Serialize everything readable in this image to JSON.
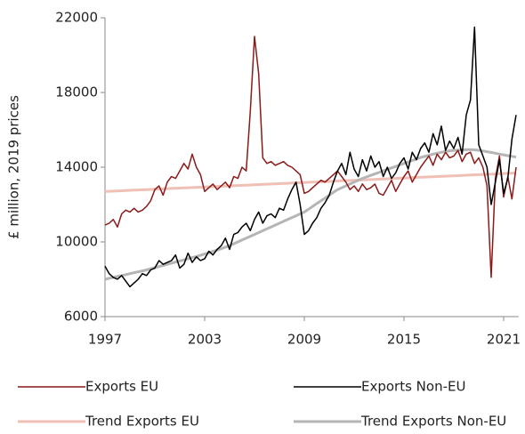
{
  "chart_data": {
    "type": "line",
    "ylabel": "£ million, 2019 prices",
    "xlim": [
      1997,
      2021.9
    ],
    "xticks": [
      1997,
      2003,
      2009,
      2015,
      2021
    ],
    "ylim": [
      6000,
      22000
    ],
    "yticks": [
      6000,
      10000,
      14000,
      18000,
      22000
    ],
    "grid": false,
    "legend": "bottom",
    "x": [
      1997,
      1997.25,
      1997.5,
      1997.75,
      1998,
      1998.25,
      1998.5,
      1998.75,
      1999,
      1999.25,
      1999.5,
      1999.75,
      2000,
      2000.25,
      2000.5,
      2000.75,
      2001,
      2001.25,
      2001.5,
      2001.75,
      2002,
      2002.25,
      2002.5,
      2002.75,
      2003,
      2003.25,
      2003.5,
      2003.75,
      2004,
      2004.25,
      2004.5,
      2004.75,
      2005,
      2005.25,
      2005.5,
      2005.75,
      2006,
      2006.25,
      2006.5,
      2006.75,
      2007,
      2007.25,
      2007.5,
      2007.75,
      2008,
      2008.25,
      2008.5,
      2008.75,
      2009,
      2009.25,
      2009.5,
      2009.75,
      2010,
      2010.25,
      2010.5,
      2010.75,
      2011,
      2011.25,
      2011.5,
      2011.75,
      2012,
      2012.25,
      2012.5,
      2012.75,
      2013,
      2013.25,
      2013.5,
      2013.75,
      2014,
      2014.25,
      2014.5,
      2014.75,
      2015,
      2015.25,
      2015.5,
      2015.75,
      2016,
      2016.25,
      2016.5,
      2016.75,
      2017,
      2017.25,
      2017.5,
      2017.75,
      2018,
      2018.25,
      2018.5,
      2018.75,
      2019,
      2019.25,
      2019.5,
      2019.75,
      2020,
      2020.25,
      2020.5,
      2020.75,
      2021,
      2021.25,
      2021.5,
      2021.75
    ],
    "series": [
      {
        "name": "Exports EU",
        "color": "#8b1a1a",
        "width": 1.5,
        "values": [
          10900,
          11000,
          11200,
          10800,
          11500,
          11700,
          11600,
          11800,
          11600,
          11700,
          11900,
          12200,
          12800,
          13000,
          12500,
          13200,
          13500,
          13400,
          13800,
          14200,
          13900,
          14700,
          14000,
          13600,
          12700,
          12900,
          13100,
          12800,
          13000,
          13200,
          12900,
          13500,
          13400,
          14000,
          13800,
          17000,
          21000,
          19000,
          14500,
          14200,
          14300,
          14100,
          14200,
          14300,
          14100,
          14000,
          13800,
          13600,
          12600,
          12700,
          12900,
          13100,
          13300,
          13200,
          13400,
          13600,
          13800,
          13500,
          13200,
          12800,
          13000,
          12700,
          13100,
          12800,
          12900,
          13100,
          12600,
          12500,
          12900,
          13300,
          12700,
          13100,
          13500,
          13800,
          13200,
          13600,
          14000,
          14300,
          14600,
          14100,
          14700,
          14400,
          14800,
          14500,
          14600,
          14900,
          14300,
          14700,
          14800,
          14200,
          14500,
          14000,
          13000,
          8100,
          13400,
          14600,
          12400,
          13500,
          12300,
          14000
        ]
      },
      {
        "name": "Exports Non-EU",
        "color": "#000000",
        "width": 1.5,
        "values": [
          8700,
          8300,
          8100,
          8000,
          8200,
          7900,
          7600,
          7800,
          8000,
          8300,
          8200,
          8500,
          8600,
          9000,
          8800,
          8900,
          9000,
          9300,
          8600,
          8800,
          9400,
          8900,
          9200,
          9000,
          9100,
          9500,
          9300,
          9600,
          9800,
          10200,
          9600,
          10400,
          10500,
          10800,
          11000,
          10600,
          11200,
          11600,
          11000,
          11400,
          11500,
          11300,
          11800,
          11700,
          12300,
          12800,
          13200,
          12000,
          10400,
          10600,
          11000,
          11300,
          11800,
          12100,
          12500,
          13200,
          13800,
          14200,
          13600,
          14800,
          13900,
          13500,
          14400,
          13800,
          14600,
          14000,
          14300,
          13500,
          14000,
          13400,
          13700,
          14200,
          14500,
          13900,
          14800,
          14400,
          15000,
          15300,
          14800,
          15800,
          15200,
          16200,
          14900,
          15400,
          15000,
          15600,
          14700,
          16800,
          17600,
          21500,
          15200,
          14600,
          14000,
          12000,
          13200,
          14400,
          12600,
          13400,
          15500,
          16800
        ]
      },
      {
        "name": "Trend Exports EU",
        "color": "#f0bfb5",
        "width": 3,
        "values": [
          12700,
          12710,
          12720,
          12730,
          12740,
          12750,
          12760,
          12770,
          12780,
          12790,
          12800,
          12810,
          12820,
          12830,
          12840,
          12850,
          12860,
          12870,
          12880,
          12890,
          12900,
          12910,
          12920,
          12930,
          12940,
          12950,
          12960,
          12970,
          12980,
          12990,
          13000,
          13010,
          13020,
          13030,
          13040,
          13050,
          13060,
          13070,
          13080,
          13090,
          13100,
          13110,
          13120,
          13130,
          13140,
          13150,
          13160,
          13170,
          13180,
          13190,
          13200,
          13210,
          13220,
          13230,
          13240,
          13250,
          13260,
          13270,
          13280,
          13290,
          13300,
          13310,
          13320,
          13330,
          13340,
          13350,
          13360,
          13370,
          13380,
          13390,
          13400,
          13410,
          13420,
          13430,
          13440,
          13450,
          13460,
          13470,
          13480,
          13490,
          13500,
          13510,
          13520,
          13530,
          13540,
          13550,
          13560,
          13570,
          13580,
          13590,
          13600,
          13610,
          13620,
          13630,
          13640,
          13650,
          13660,
          13670,
          13680,
          13690
        ]
      },
      {
        "name": "Trend Exports Non-EU",
        "color": "#b5b5b5",
        "width": 3,
        "values": [
          8000,
          8050,
          8100,
          8150,
          8200,
          8250,
          8300,
          8350,
          8400,
          8450,
          8500,
          8560,
          8620,
          8680,
          8740,
          8800,
          8860,
          8920,
          8980,
          9040,
          9100,
          9160,
          9220,
          9280,
          9350,
          9420,
          9490,
          9560,
          9640,
          9720,
          9800,
          9900,
          10000,
          10100,
          10200,
          10300,
          10400,
          10500,
          10600,
          10700,
          10800,
          10900,
          11000,
          11100,
          11200,
          11300,
          11400,
          11500,
          11600,
          11750,
          11900,
          12050,
          12200,
          12350,
          12500,
          12650,
          12800,
          12900,
          13000,
          13100,
          13200,
          13300,
          13400,
          13480,
          13560,
          13640,
          13720,
          13800,
          13880,
          13960,
          14040,
          14120,
          14200,
          14280,
          14360,
          14440,
          14520,
          14580,
          14640,
          14700,
          14750,
          14800,
          14840,
          14880,
          14900,
          14920,
          14930,
          14940,
          14940,
          14930,
          14900,
          14870,
          14830,
          14790,
          14750,
          14700,
          14660,
          14620,
          14580,
          14540
        ]
      }
    ]
  }
}
